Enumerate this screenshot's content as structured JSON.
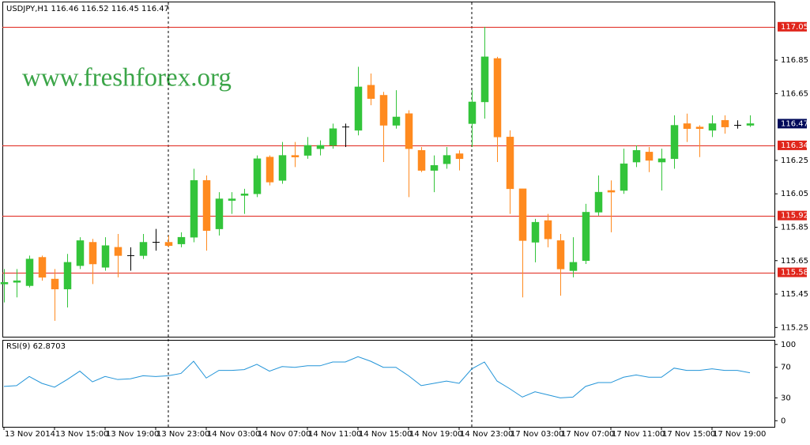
{
  "chart_data": [
    {
      "type": "candlestick",
      "title": "USDJPY,H1 116.46 116.52 116.45 116.47",
      "watermark": "www.freshforex.org",
      "categories": [
        "13 Nov 2014",
        null,
        null,
        null,
        "13 Nov 15:00",
        null,
        null,
        null,
        "13 Nov 19:00",
        null,
        null,
        null,
        "13 Nov 23:00",
        null,
        null,
        null,
        "14 Nov 03:00",
        null,
        null,
        null,
        "14 Nov 07:00",
        null,
        null,
        null,
        "14 Nov 11:00",
        null,
        null,
        null,
        "14 Nov 15:00",
        null,
        null,
        null,
        "14 Nov 19:00",
        null,
        null,
        null,
        "14 Nov 23:00",
        null,
        null,
        null,
        "17 Nov 03:00",
        null,
        null,
        null,
        "17 Nov 07:00",
        null,
        null,
        null,
        "17 Nov 11:00",
        null,
        null,
        null,
        "17 Nov 15:00",
        null,
        null,
        null,
        "17 Nov 19:00",
        null,
        null,
        null
      ],
      "open": [
        115.51,
        115.52,
        115.5,
        115.67,
        115.54,
        115.48,
        115.62,
        115.76,
        115.61,
        115.73,
        115.68,
        115.68,
        115.76,
        115.76,
        115.75,
        115.79,
        116.13,
        115.84,
        116.01,
        116.04,
        116.05,
        116.27,
        116.13,
        116.28,
        116.28,
        116.32,
        116.34,
        116.45,
        116.43,
        116.7,
        116.64,
        116.46,
        116.53,
        116.31,
        116.19,
        116.23,
        116.29,
        116.47,
        116.6,
        116.86,
        116.39,
        116.08,
        115.76,
        115.89,
        115.77,
        115.59,
        115.65,
        115.94,
        116.07,
        116.07,
        116.24,
        116.3,
        116.24,
        116.26,
        116.47,
        116.45,
        116.43,
        116.49,
        116.46,
        116.46
      ],
      "high": [
        115.6,
        115.6,
        115.68,
        115.68,
        115.6,
        115.69,
        115.79,
        115.78,
        115.79,
        115.81,
        115.73,
        115.81,
        115.84,
        115.8,
        115.82,
        116.2,
        116.16,
        116.06,
        116.06,
        116.08,
        116.28,
        116.28,
        116.36,
        116.36,
        116.39,
        116.37,
        116.47,
        116.47,
        116.81,
        116.77,
        116.66,
        116.67,
        116.55,
        116.33,
        116.28,
        116.33,
        116.31,
        116.67,
        117.05,
        116.87,
        116.43,
        116.08,
        115.9,
        115.93,
        115.81,
        115.79,
        115.99,
        116.16,
        116.13,
        116.32,
        116.34,
        116.33,
        116.32,
        116.52,
        116.53,
        116.46,
        116.52,
        116.52,
        116.49,
        116.52
      ],
      "low": [
        115.4,
        115.43,
        115.49,
        115.53,
        115.29,
        115.37,
        115.6,
        115.51,
        115.59,
        115.55,
        115.59,
        115.66,
        115.71,
        115.73,
        115.73,
        115.76,
        115.71,
        115.8,
        115.93,
        115.93,
        116.03,
        116.1,
        116.11,
        116.21,
        116.26,
        116.28,
        116.32,
        116.33,
        116.4,
        116.58,
        116.24,
        116.44,
        116.03,
        116.18,
        116.06,
        116.2,
        116.19,
        116.33,
        116.5,
        116.24,
        115.93,
        115.43,
        115.64,
        115.73,
        115.44,
        115.55,
        115.63,
        115.92,
        115.82,
        116.05,
        116.21,
        116.18,
        116.07,
        116.2,
        116.36,
        116.27,
        116.39,
        116.41,
        116.44,
        116.45
      ],
      "close": [
        115.52,
        115.53,
        115.66,
        115.55,
        115.48,
        115.64,
        115.77,
        115.63,
        115.74,
        115.68,
        115.68,
        115.76,
        115.76,
        115.74,
        115.79,
        116.13,
        115.83,
        116.02,
        116.02,
        116.05,
        116.26,
        116.12,
        116.28,
        116.27,
        116.34,
        116.34,
        116.44,
        116.45,
        116.69,
        116.62,
        116.46,
        116.51,
        116.32,
        116.19,
        116.22,
        116.28,
        116.26,
        116.6,
        116.87,
        116.39,
        116.08,
        115.77,
        115.88,
        115.78,
        115.6,
        115.64,
        115.94,
        116.06,
        116.06,
        116.23,
        116.31,
        116.25,
        116.26,
        116.46,
        116.44,
        116.44,
        116.47,
        116.45,
        116.46,
        116.47
      ],
      "up_color": "#33c43a",
      "down_color": "#ff8a1f",
      "doji_color": "#000000",
      "ylim": [
        115.19,
        117.21
      ],
      "yticks": [
        115.25,
        115.45,
        115.65,
        115.85,
        116.05,
        116.25,
        116.65,
        116.85
      ],
      "levels": [
        117.05,
        116.34,
        115.92,
        115.58
      ],
      "level_color": "#e0251b",
      "price_label_color": "#000a5a"
    },
    {
      "type": "line",
      "title": "RSI(9) 62.8703",
      "values": [
        45,
        46,
        58,
        49,
        44,
        54,
        65,
        51,
        58,
        54,
        55,
        59,
        58,
        59,
        62,
        78,
        56,
        66,
        66,
        67,
        74,
        65,
        71,
        70,
        72,
        72,
        77,
        77,
        84,
        78,
        70,
        70,
        59,
        46,
        49,
        52,
        49,
        68,
        77,
        52,
        42,
        31,
        38,
        34,
        30,
        31,
        45,
        50,
        50,
        57,
        60,
        57,
        57,
        69,
        66,
        66,
        68,
        66,
        66,
        62.87
      ],
      "color": "#2294d8",
      "ylim": [
        -8,
        106
      ],
      "yticks": [
        0,
        30,
        70,
        100
      ]
    }
  ]
}
